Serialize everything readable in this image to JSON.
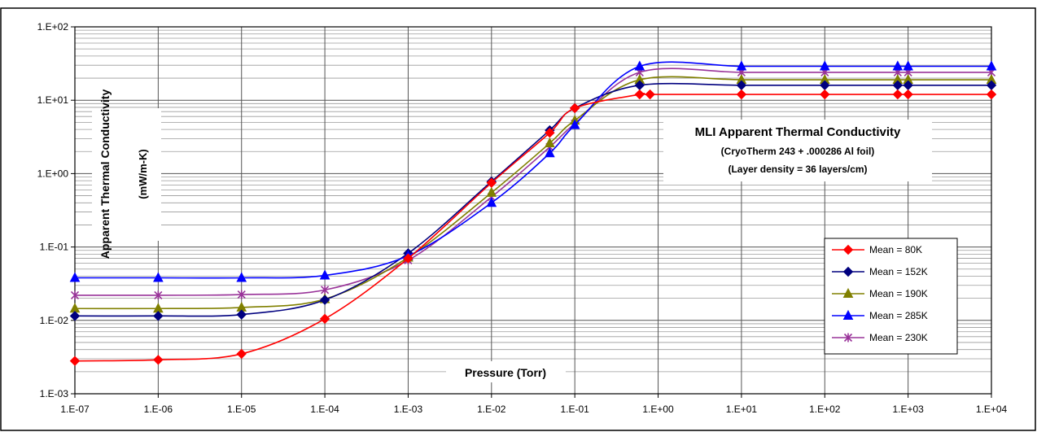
{
  "chart_data": {
    "type": "line",
    "title": "MLI Apparent Thermal Conductivity",
    "subtitle": "(CryoTherm 243 + .000286 Al foil)",
    "subtitle2": "(Layer density = 36 layers/cm)",
    "xlabel": "Pressure (Torr)",
    "ylabel": "Apparent Thermal Conductivity",
    "ylabel2": "(mW/m-K)",
    "x_scale": "log",
    "y_scale": "log",
    "xlim": [
      1e-07,
      10000.0
    ],
    "ylim": [
      0.001,
      100
    ],
    "grid": true,
    "legend_position": "right",
    "x_tick_labels": [
      "1.E-07",
      "1.E-06",
      "1.E-05",
      "1.E-04",
      "1.E-03",
      "1.E-02",
      "1.E-01",
      "1.E+00",
      "1.E+01",
      "1.E+02",
      "1.E+03",
      "1.E+04"
    ],
    "y_tick_labels": [
      "1.E-03",
      "1.E-02",
      "1.E-01",
      "1.E+00",
      "1.E+01",
      "1.E+02"
    ],
    "series": [
      {
        "name": "Mean = 80K",
        "color": "#ff0000",
        "marker": "diamond",
        "x": [
          1e-07,
          1e-06,
          1e-05,
          0.0001,
          0.001,
          0.01,
          0.05,
          0.1,
          0.6,
          0.8,
          10,
          100,
          750,
          1000,
          10000
        ],
        "y": [
          0.0028,
          0.0029,
          0.0035,
          0.0105,
          0.07,
          0.75,
          3.6,
          7.8,
          12,
          12,
          12,
          12,
          12,
          12,
          12
        ]
      },
      {
        "name": "Mean = 152K",
        "color": "#00007f",
        "marker": "diamond",
        "x": [
          1e-07,
          1e-06,
          1e-05,
          0.0001,
          0.001,
          0.01,
          0.05,
          0.1,
          0.6,
          10,
          100,
          750,
          1000,
          10000
        ],
        "y": [
          0.0115,
          0.0115,
          0.012,
          0.019,
          0.082,
          0.78,
          3.9,
          7.8,
          16,
          16,
          16,
          16,
          16,
          16
        ]
      },
      {
        "name": "Mean = 190K",
        "color": "#808000",
        "marker": "triangle",
        "x": [
          1e-07,
          1e-06,
          1e-05,
          0.0001,
          0.001,
          0.01,
          0.05,
          0.1,
          0.6,
          10,
          100,
          750,
          1000,
          10000
        ],
        "y": [
          0.0145,
          0.0145,
          0.015,
          0.0195,
          0.072,
          0.55,
          2.6,
          5.3,
          19,
          19,
          19,
          19,
          19,
          19
        ]
      },
      {
        "name": "Mean = 285K",
        "color": "#0000ff",
        "marker": "triangle",
        "x": [
          1e-07,
          1e-06,
          1e-05,
          0.0001,
          0.001,
          0.01,
          0.05,
          0.1,
          0.6,
          10,
          100,
          750,
          1000,
          10000
        ],
        "y": [
          0.038,
          0.038,
          0.038,
          0.041,
          0.076,
          0.4,
          1.9,
          4.6,
          29,
          29,
          29,
          29,
          29,
          29
        ]
      },
      {
        "name": "Mean = 230K",
        "color": "#993399",
        "marker": "x",
        "x": [
          1e-07,
          1e-06,
          1e-05,
          0.0001,
          0.001,
          0.01,
          0.05,
          0.1,
          0.6,
          10,
          100,
          750,
          1000,
          10000
        ],
        "y": [
          0.022,
          0.022,
          0.0225,
          0.026,
          0.066,
          0.48,
          2.3,
          4.8,
          24,
          24,
          24,
          24,
          24,
          24
        ]
      }
    ]
  }
}
